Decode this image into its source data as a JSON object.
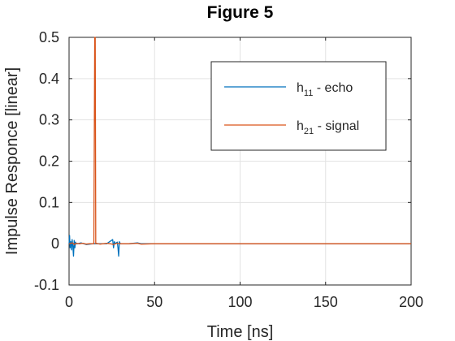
{
  "chart_data": {
    "type": "line",
    "title": "Figure 5",
    "xlabel": "Time [ns]",
    "ylabel": "Impulse Responce [linear]",
    "xlim": [
      0,
      200
    ],
    "ylim": [
      -0.1,
      0.5
    ],
    "xticks": [
      0,
      50,
      100,
      150,
      200
    ],
    "yticks": [
      -0.1,
      0,
      0.1,
      0.2,
      0.3,
      0.4,
      0.5
    ],
    "xtick_labels": [
      "0",
      "50",
      "100",
      "150",
      "200"
    ],
    "ytick_labels": [
      "-0.1",
      "0",
      "0.1",
      "0.2",
      "0.3",
      "0.4",
      "0.5"
    ],
    "grid": true,
    "legend_position": "top-right",
    "series": [
      {
        "name": "h11 - echo",
        "name_base": "h",
        "name_sub": "11",
        "name_rest": " - echo",
        "color": "#0072BD",
        "x": [
          0,
          0.3,
          0.6,
          1.0,
          1.4,
          1.8,
          2.2,
          2.6,
          3.0,
          3.4,
          3.8,
          4.2,
          5,
          7,
          10,
          14,
          18,
          22,
          25.5,
          26.0,
          26.5,
          27,
          28.2,
          28.6,
          29.0,
          29.4,
          30,
          35,
          40,
          42,
          50,
          100,
          150,
          200
        ],
        "y": [
          0,
          0.02,
          -0.01,
          0.005,
          -0.015,
          0.01,
          -0.005,
          -0.03,
          0.008,
          -0.01,
          0.004,
          0,
          0,
          0.002,
          -0.002,
          0,
          0,
          0,
          0.01,
          -0.01,
          0.005,
          0,
          0.004,
          -0.01,
          -0.03,
          0.005,
          0,
          0,
          0.002,
          0,
          0,
          0,
          0,
          0
        ]
      },
      {
        "name": "h21 - signal",
        "name_base": "h",
        "name_sub": "21",
        "name_rest": " - signal",
        "color": "#D95319",
        "x": [
          0,
          2,
          3,
          4,
          6,
          8,
          10,
          12,
          14.5,
          15.0,
          15.3,
          15.6,
          16,
          18,
          20,
          22,
          24,
          26,
          28,
          30,
          35,
          40,
          42,
          50,
          100,
          150,
          200
        ],
        "y": [
          0,
          0.002,
          -0.002,
          0.001,
          0,
          0.001,
          -0.001,
          0,
          0,
          0.5,
          0.5,
          0,
          0.001,
          -0.001,
          0,
          0.001,
          0,
          -0.002,
          0.001,
          0,
          0,
          0.001,
          -0.001,
          0,
          0,
          0,
          0
        ]
      }
    ]
  }
}
